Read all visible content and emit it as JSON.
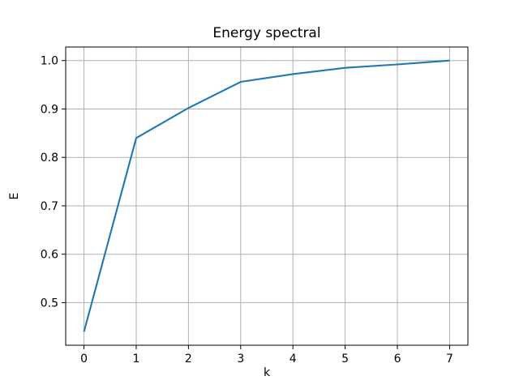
{
  "figure": {
    "background": "#ffffff"
  },
  "chart_data": {
    "type": "line",
    "title": "Energy spectral",
    "xlabel": "k",
    "ylabel": "E",
    "x": [
      0,
      1,
      2,
      3,
      4,
      5,
      6,
      7
    ],
    "series": [
      {
        "name": "E",
        "color": "#1f77b4",
        "values": [
          0.44,
          0.84,
          0.902,
          0.956,
          0.972,
          0.985,
          0.992,
          1.0
        ]
      }
    ],
    "xticks": [
      0,
      1,
      2,
      3,
      4,
      5,
      6,
      7
    ],
    "yticks": [
      0.5,
      0.6,
      0.7,
      0.8,
      0.9,
      1.0
    ],
    "xlim": [
      -0.35,
      7.35
    ],
    "ylim": [
      0.412,
      1.028
    ],
    "grid": true,
    "legend": false,
    "grid_color": "#b0b0b0",
    "spine_color": "#000000",
    "background": "#ffffff"
  }
}
